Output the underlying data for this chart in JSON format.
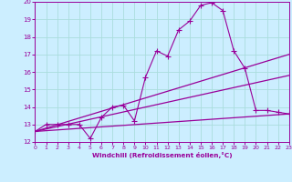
{
  "background_color": "#cceeff",
  "grid_color": "#aadddd",
  "line_color": "#990099",
  "xlabel": "Windchill (Refroidissement éolien,°C)",
  "xlim": [
    0,
    23
  ],
  "ylim": [
    12,
    20
  ],
  "yticks": [
    12,
    13,
    14,
    15,
    16,
    17,
    18,
    19,
    20
  ],
  "xticks": [
    0,
    1,
    2,
    3,
    4,
    5,
    6,
    7,
    8,
    9,
    10,
    11,
    12,
    13,
    14,
    15,
    16,
    17,
    18,
    19,
    20,
    21,
    22,
    23
  ],
  "series": [
    {
      "x": [
        0,
        1,
        2,
        3,
        4,
        5,
        6,
        7,
        8,
        9,
        10,
        11,
        12,
        13,
        14,
        15,
        16,
        17,
        18,
        19,
        20,
        21,
        22,
        23
      ],
      "y": [
        12.6,
        13.0,
        13.0,
        13.0,
        13.0,
        12.2,
        13.4,
        14.0,
        14.1,
        13.2,
        15.7,
        17.2,
        16.9,
        18.4,
        18.9,
        19.8,
        19.95,
        19.5,
        17.2,
        16.2,
        13.8,
        13.8,
        13.7,
        13.6
      ],
      "marker": "+",
      "markersize": 4,
      "linewidth": 0.8,
      "zorder": 3
    },
    {
      "x": [
        0,
        23
      ],
      "y": [
        12.6,
        17.0
      ],
      "marker": null,
      "linewidth": 0.9,
      "zorder": 2
    },
    {
      "x": [
        0,
        23
      ],
      "y": [
        12.6,
        15.8
      ],
      "marker": null,
      "linewidth": 0.9,
      "zorder": 2
    },
    {
      "x": [
        0,
        23
      ],
      "y": [
        12.6,
        13.6
      ],
      "marker": null,
      "linewidth": 0.9,
      "zorder": 2
    }
  ]
}
